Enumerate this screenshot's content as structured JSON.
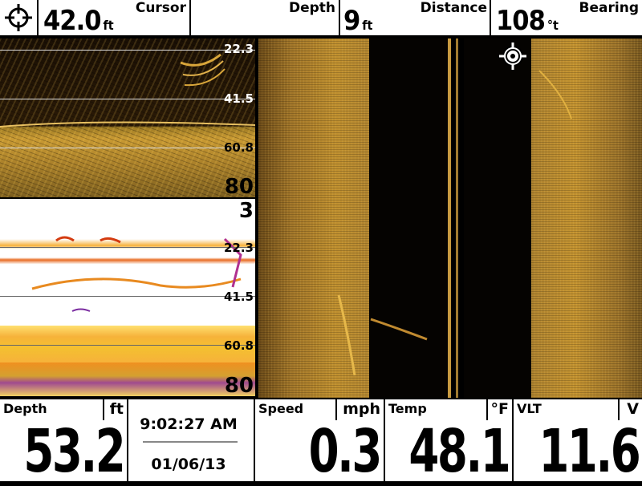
{
  "top_bar": {
    "cursor_label": "Cursor",
    "cursor_value": "42.0",
    "cursor_unit": "ft",
    "depth_label": "Depth",
    "distance_value": "9",
    "distance_unit": "ft",
    "distance_label": "Distance",
    "bearing_value": "108",
    "bearing_unit": "°t",
    "bearing_label": "Bearing"
  },
  "down_scan": {
    "depth_lines": [
      "22.3",
      "41.5",
      "60.8"
    ],
    "max_depth": "80"
  },
  "sonar_2d": {
    "min_depth": "3",
    "depth_lines": [
      "22.3",
      "41.5",
      "60.8"
    ],
    "max_depth": "80"
  },
  "bottom_bar": {
    "depth_label": "Depth",
    "depth_unit": "ft",
    "depth_value": "53.2",
    "time": "9:02:27 AM",
    "date": "01/06/13",
    "speed_label": "Speed",
    "speed_unit": "mph",
    "speed_value": "0.3",
    "temp_label": "Temp",
    "temp_unit": "°F",
    "temp_value": "48.1",
    "vlt_label": "VLT",
    "vlt_unit": "V",
    "vlt_value": "11.6"
  },
  "colors": {
    "sonar_gold": "#c0902f",
    "sonar_dark": "#1a0f04",
    "panel_bg": "#ffffff"
  },
  "icons": [
    "crosshair-icon",
    "cursor-target-icon"
  ]
}
